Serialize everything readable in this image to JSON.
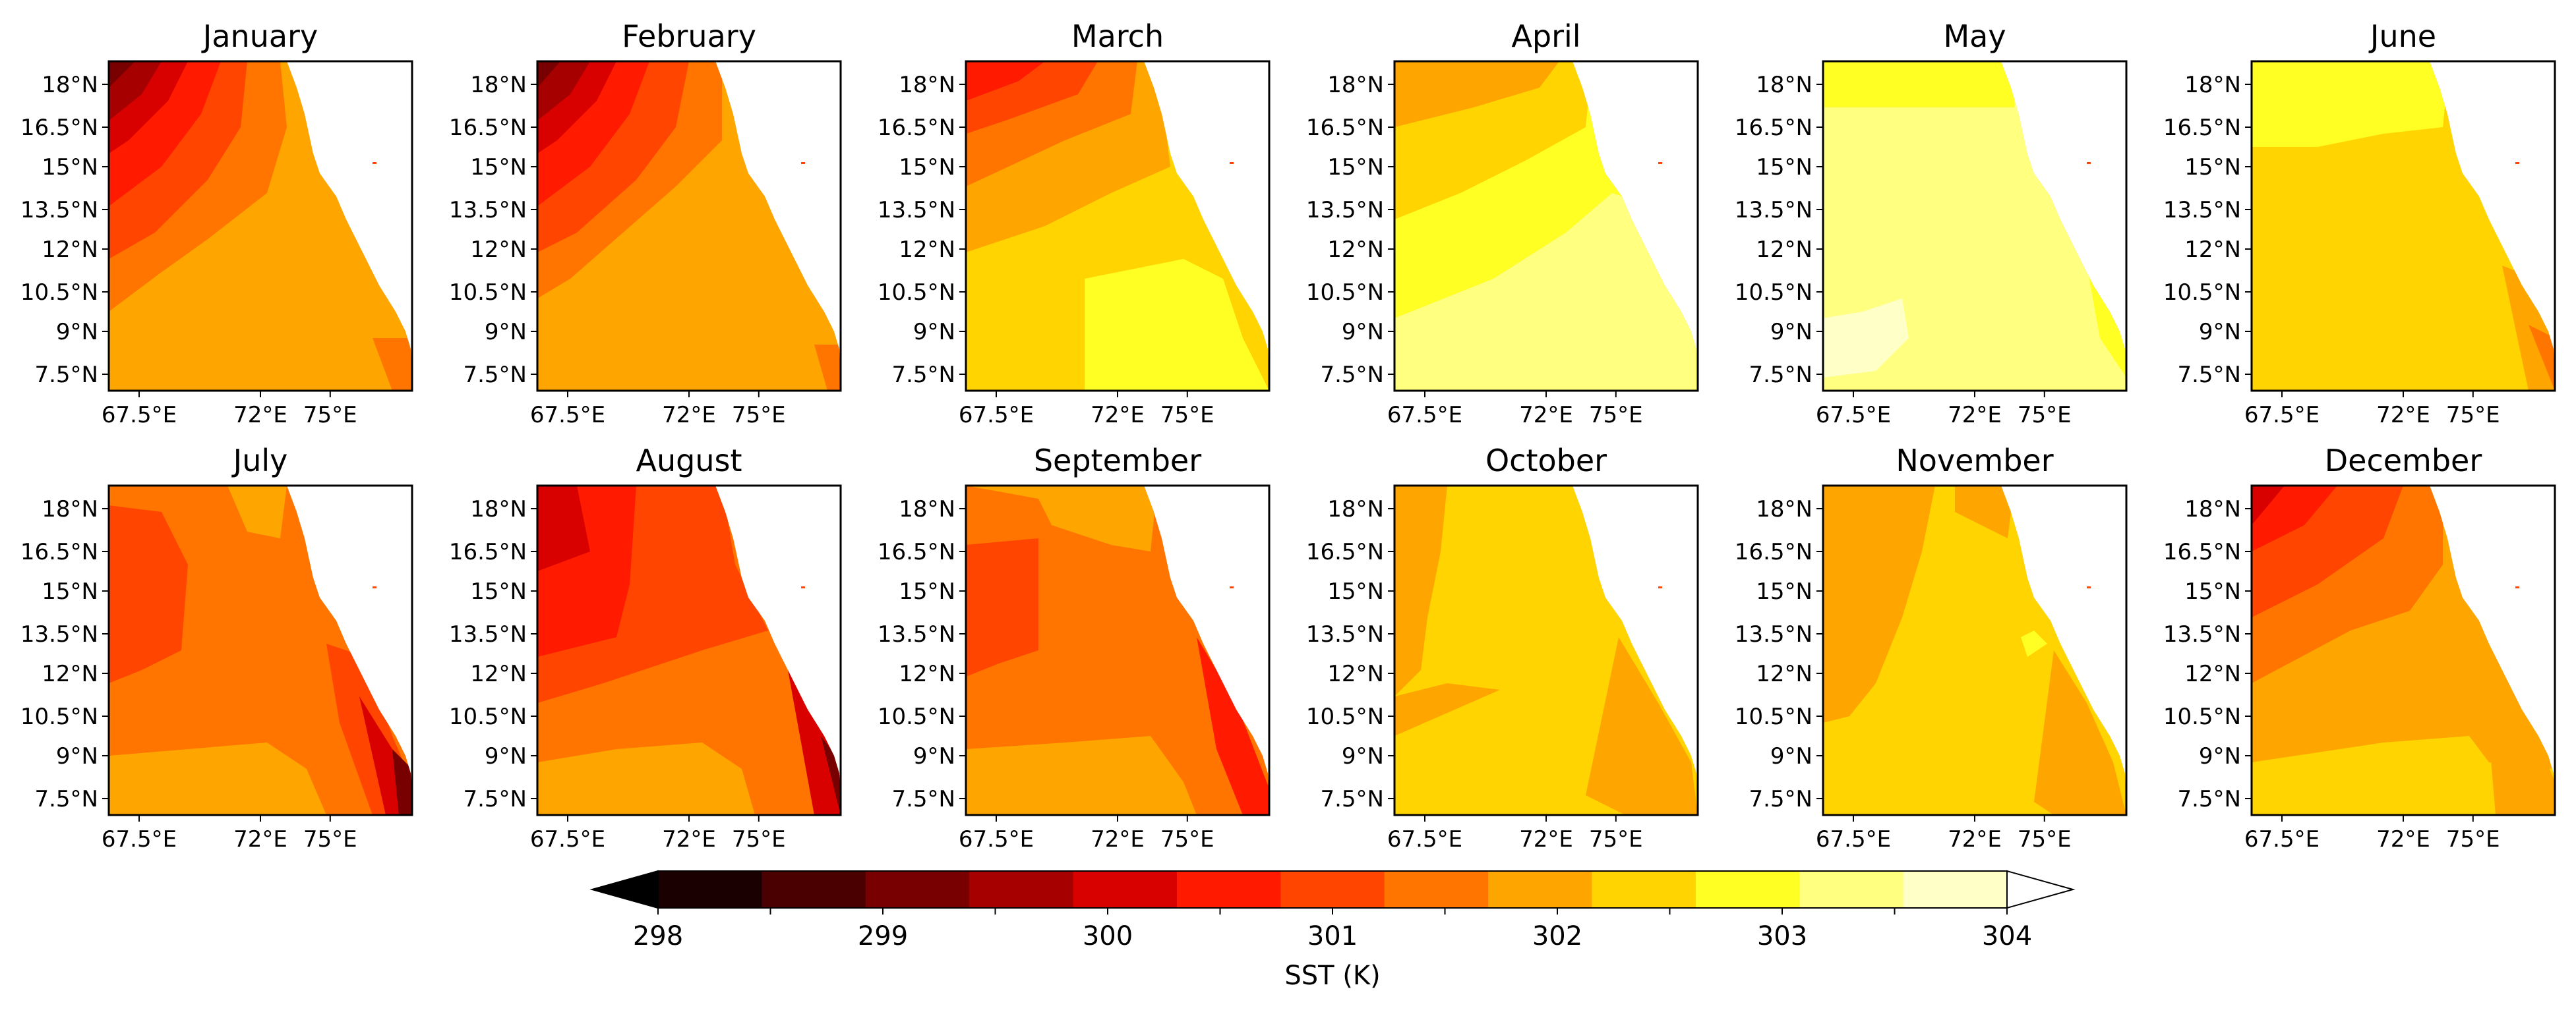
{
  "chart_data": {
    "type": "heatmap",
    "panels": [
      {
        "title": "January"
      },
      {
        "title": "February"
      },
      {
        "title": "March"
      },
      {
        "title": "April"
      },
      {
        "title": "May"
      },
      {
        "title": "June"
      },
      {
        "title": "July"
      },
      {
        "title": "August"
      },
      {
        "title": "September"
      },
      {
        "title": "October"
      },
      {
        "title": "November"
      },
      {
        "title": "December"
      }
    ],
    "x_ticks": [
      "67.5°E",
      "72°E",
      "75°E"
    ],
    "y_ticks": [
      "18°N",
      "16.5°N",
      "15°N",
      "13.5°N",
      "12°N",
      "10.5°N",
      "9°N",
      "7.5°N"
    ],
    "colorbar": {
      "label": "SST (K)",
      "tick_labels": [
        "298",
        "299",
        "300",
        "301",
        "302",
        "303",
        "304"
      ],
      "range": [
        298,
        304
      ],
      "step": 0.5,
      "extend": "both",
      "colors": [
        "#1a0000",
        "#4a0000",
        "#780000",
        "#a60000",
        "#d90000",
        "#ff1a00",
        "#ff4500",
        "#ff7500",
        "#ffa500",
        "#ffd400",
        "#ffff24",
        "#ffff80",
        "#ffffc8"
      ],
      "under_color": "#000000",
      "over_color": "#ffffff"
    },
    "approx_sst_offshore_K": {
      "January": [
        299.5,
        301.5
      ],
      "February": [
        299.5,
        301.5
      ],
      "March": [
        300.0,
        303.0
      ],
      "April": [
        301.5,
        303.5
      ],
      "May": [
        303.0,
        304.0
      ],
      "June": [
        302.0,
        303.0
      ],
      "July": [
        301.0,
        301.5
      ],
      "August": [
        300.0,
        301.5
      ],
      "September": [
        301.0,
        301.5
      ],
      "October": [
        301.5,
        302.5
      ],
      "November": [
        301.5,
        302.5
      ],
      "December": [
        300.0,
        302.0
      ]
    }
  }
}
